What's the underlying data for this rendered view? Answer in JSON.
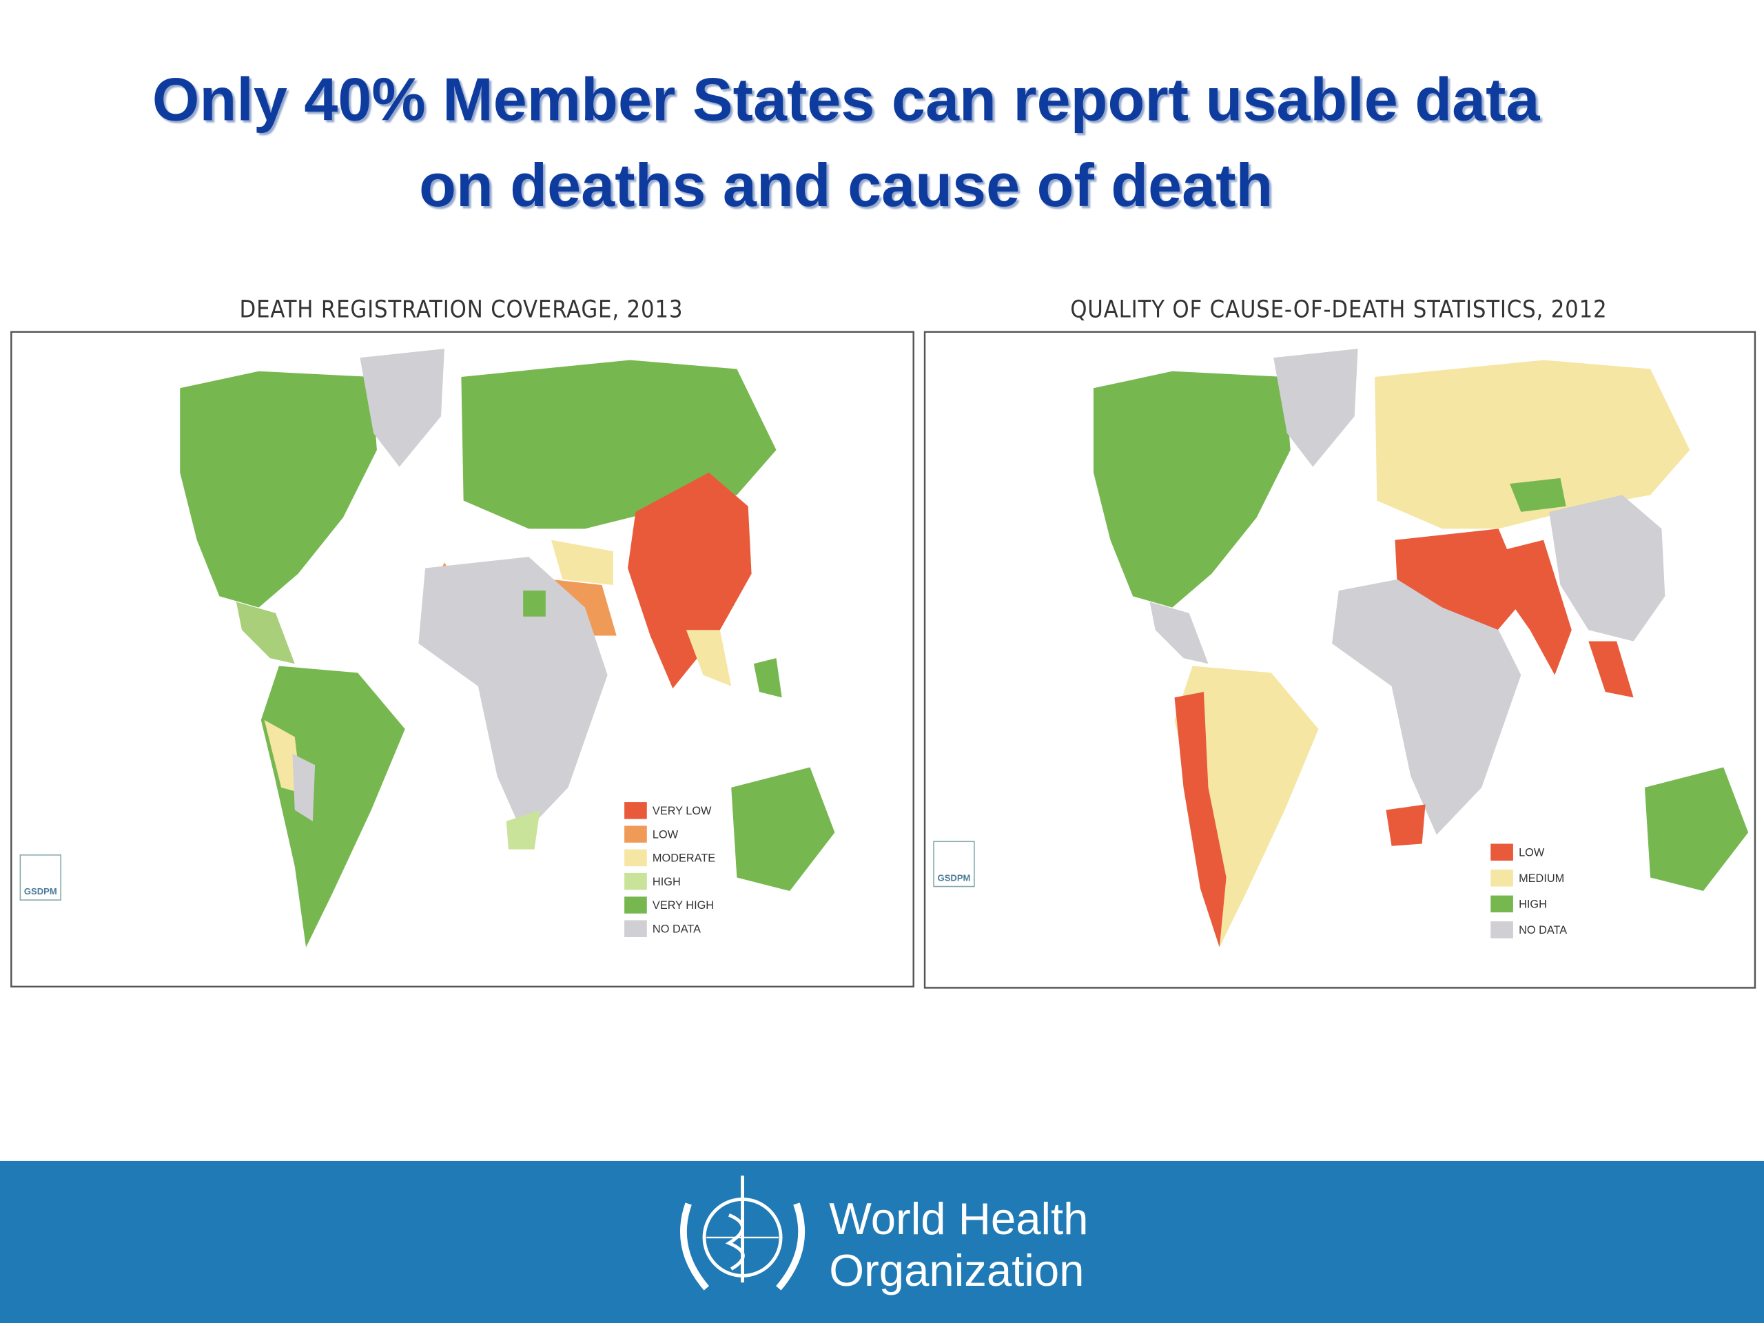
{
  "slide": {
    "title_lines": [
      "Only 40% Member States can report usable data",
      "on deaths and cause of death"
    ],
    "left_map": {
      "title": "DEATH REGISTRATION COVERAGE, 2013",
      "logo": "GSDPM",
      "legend": [
        "VERY LOW",
        "LOW",
        "MODERATE",
        "HIGH",
        "VERY HIGH",
        "NO DATA"
      ]
    },
    "right_map": {
      "title": "QUALITY OF CAUSE-OF-DEATH STATISTICS, 2012",
      "logo": "GSDPM",
      "legend": [
        "LOW",
        "MEDIUM",
        "HIGH",
        "NO DATA"
      ]
    },
    "footer": {
      "org_lines": [
        "World Health",
        "Organization"
      ]
    }
  }
}
